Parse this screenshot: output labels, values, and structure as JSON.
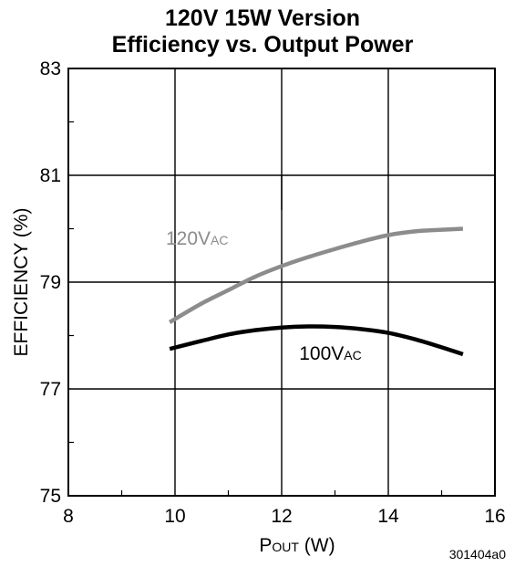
{
  "chart_data": {
    "type": "line",
    "title": [
      "120V 15W Version",
      "Efficiency vs. Output Power"
    ],
    "xlabel": {
      "main": "P",
      "sub": "OUT",
      "rest": " (W)"
    },
    "ylabel": "EFFICIENCY (%)",
    "xlim": [
      8,
      16
    ],
    "ylim": [
      75,
      83
    ],
    "xticks": [
      8,
      10,
      12,
      14,
      16
    ],
    "yticks": [
      75,
      77,
      79,
      81,
      83
    ],
    "grid": true,
    "series": [
      {
        "name": "120V",
        "name_sub": "AC",
        "color": "#8c8c8c",
        "x": [
          9.9,
          10.5,
          11.0,
          11.5,
          12.0,
          12.5,
          13.0,
          13.5,
          14.0,
          14.5,
          15.0,
          15.4
        ],
        "y": [
          78.25,
          78.6,
          78.85,
          79.1,
          79.3,
          79.47,
          79.62,
          79.76,
          79.88,
          79.95,
          79.98,
          80.0
        ]
      },
      {
        "name": "100V",
        "name_sub": "AC",
        "color": "#000000",
        "x": [
          9.9,
          10.5,
          11.0,
          11.5,
          12.0,
          12.5,
          13.0,
          13.5,
          14.0,
          14.5,
          15.0,
          15.4
        ],
        "y": [
          77.75,
          77.9,
          78.02,
          78.1,
          78.15,
          78.17,
          78.16,
          78.12,
          78.05,
          77.93,
          77.78,
          77.65
        ]
      }
    ]
  },
  "figure_id": "301404a0"
}
